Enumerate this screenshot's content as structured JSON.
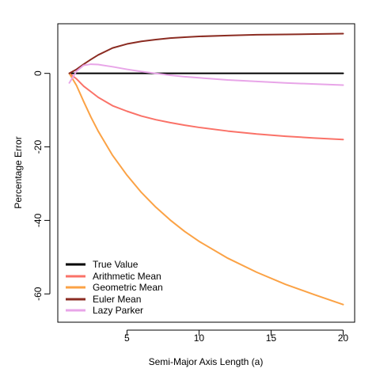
{
  "chart_data": {
    "type": "line",
    "title": "",
    "xlabel": "Semi-Major Axis Length (a)",
    "ylabel": "Percentage Error",
    "xlim": [
      0.2,
      20.8
    ],
    "ylim": [
      -67.7,
      13.5
    ],
    "x_ticks": [
      5,
      10,
      15,
      20
    ],
    "y_ticks": [
      0,
      -20,
      -40,
      -60
    ],
    "grid": false,
    "legend_position": "bottom-left",
    "x": [
      1,
      1.5,
      2,
      2.5,
      3,
      4,
      5,
      6,
      7,
      8,
      9,
      10,
      12,
      14,
      16,
      18,
      20
    ],
    "series": [
      {
        "name": "True Value",
        "color": "#000000",
        "values": [
          0,
          0,
          0,
          0,
          0,
          0,
          0,
          0,
          0,
          0,
          0,
          0,
          0,
          0,
          0,
          0,
          0
        ]
      },
      {
        "name": "Arithmetic Mean",
        "color": "#fa7268",
        "values": [
          0,
          -1.5,
          -3.5,
          -5.0,
          -6.5,
          -8.8,
          -10.3,
          -11.6,
          -12.6,
          -13.4,
          -14.1,
          -14.7,
          -15.7,
          -16.5,
          -17.1,
          -17.6,
          -18.0
        ]
      },
      {
        "name": "Geometric Mean",
        "color": "#fba245",
        "values": [
          0,
          -3.3,
          -7.7,
          -11.9,
          -15.7,
          -22.3,
          -27.7,
          -32.4,
          -36.4,
          -39.9,
          -43.0,
          -45.7,
          -50.3,
          -54.1,
          -57.4,
          -60.2,
          -62.9
        ]
      },
      {
        "name": "Euler Mean",
        "color": "#8b2c22",
        "values": [
          0,
          1.1,
          2.5,
          3.8,
          5.0,
          6.9,
          8.0,
          8.7,
          9.2,
          9.6,
          9.85,
          10.05,
          10.3,
          10.5,
          10.6,
          10.7,
          10.8
        ]
      },
      {
        "name": "Lazy Parker",
        "color": "#e8a5e8",
        "values": [
          -2.6,
          0.6,
          2.2,
          2.5,
          2.4,
          1.8,
          1.1,
          0.5,
          0.0,
          -0.5,
          -0.9,
          -1.2,
          -1.8,
          -2.2,
          -2.6,
          -2.9,
          -3.2
        ]
      }
    ]
  }
}
